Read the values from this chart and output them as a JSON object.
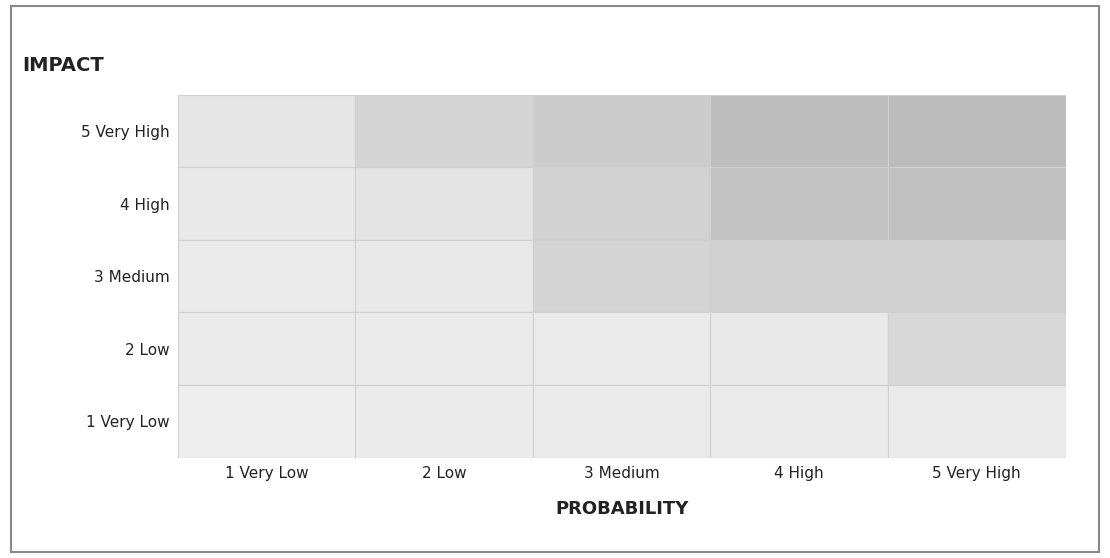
{
  "y_labels": [
    "1 Very Low",
    "2 Low",
    "3 Medium",
    "4 High",
    "5 Very High"
  ],
  "x_labels": [
    "1 Very Low",
    "2 Low",
    "3 Medium",
    "4 High",
    "5 Very High"
  ],
  "y_axis_label": "IMPACT",
  "x_axis_label": "PROBABILITY",
  "background_color": "#ffffff",
  "outer_border_color": "#888888",
  "grid_color": "#d0d0d0",
  "text_color": "#222222",
  "tick_fontsize": 11,
  "axis_label_fontsize": 13,
  "impact_label_fontsize": 14,
  "cell_colors": [
    [
      "#e6e6e6",
      "#d4d4d4",
      "#cccccc",
      "#bebebe",
      "#bcbcbc"
    ],
    [
      "#e8e8e8",
      "#e4e4e4",
      "#d2d2d2",
      "#c2c2c2",
      "#c0c0c0"
    ],
    [
      "#eaeaea",
      "#e8e8e8",
      "#d4d4d4",
      "#d0d0d0",
      "#d0d0d0"
    ],
    [
      "#ebebeb",
      "#eaeaea",
      "#eaeaea",
      "#e8e8e8",
      "#d8d8d8"
    ],
    [
      "#eeeeee",
      "#ebebeb",
      "#eaeaea",
      "#eaeaea",
      "#eaeaea"
    ]
  ]
}
